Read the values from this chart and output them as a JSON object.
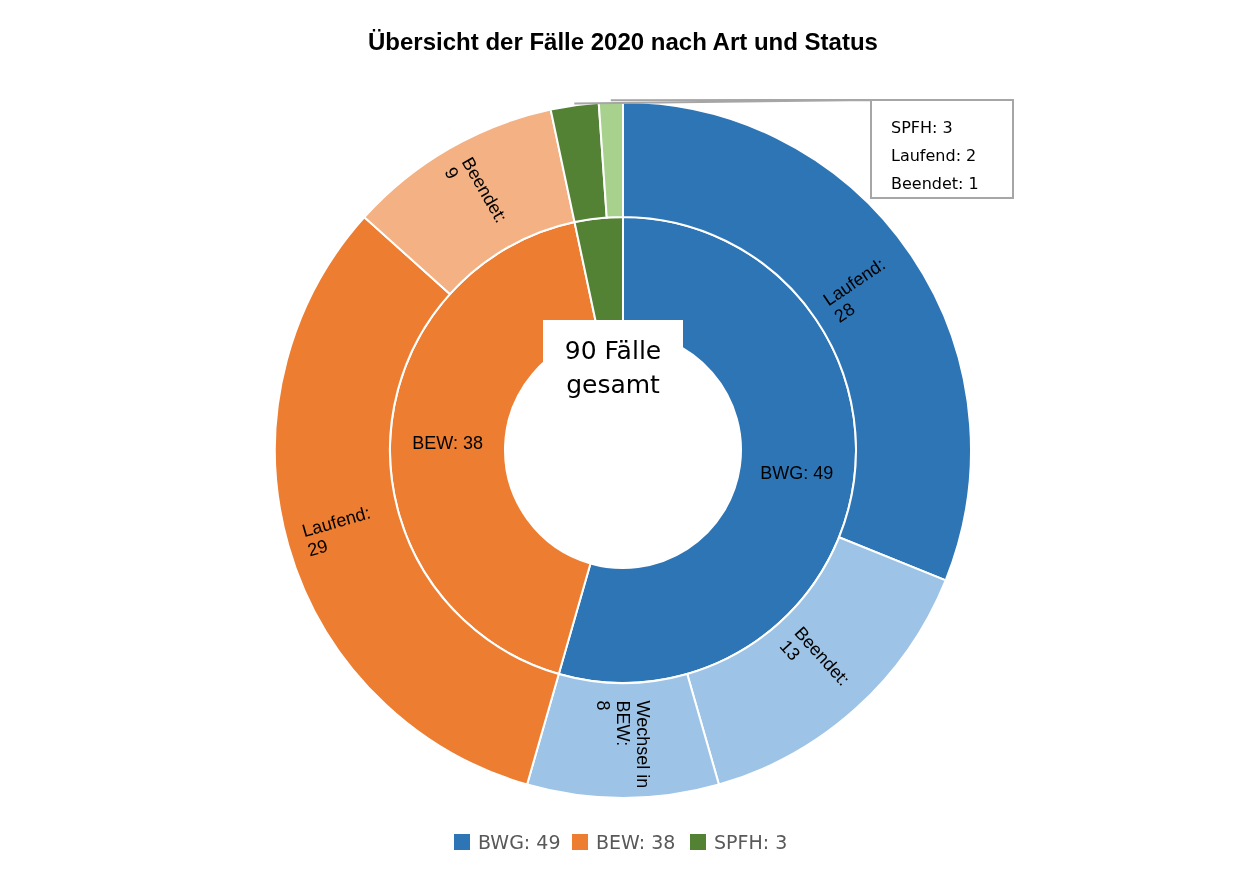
{
  "chart_data": [
    {
      "type": "donut",
      "title": "Übersicht der Fälle 2020 nach Art und Status",
      "categories": [
        "BWG: 49",
        "BEW: 38",
        "SPFH: 3"
      ],
      "values": [
        49,
        38,
        3
      ],
      "colors": [
        "#2e75b6",
        "#ed7d31",
        "#548235"
      ],
      "legend": "bottom",
      "annotations": [
        "90 Fälle gesamt"
      ]
    },
    {
      "type": "donut",
      "categories": [
        "Laufend: 28",
        "Beendet: 13",
        "Wechsel in BEW: 8",
        "Laufend: 29",
        "Beendet: 9",
        null,
        null
      ],
      "values": [
        28,
        13,
        8,
        29,
        9,
        2,
        1
      ],
      "colors": [
        "#2e75b6",
        "#9dc3e6",
        "#9dc3e6",
        "#ed7d31",
        "#f4b183",
        "#548235",
        "#a9d18e"
      ],
      "annotations": [
        "SPFH: 3",
        "Laufend: 2",
        "Beendet: 1"
      ]
    }
  ]
}
